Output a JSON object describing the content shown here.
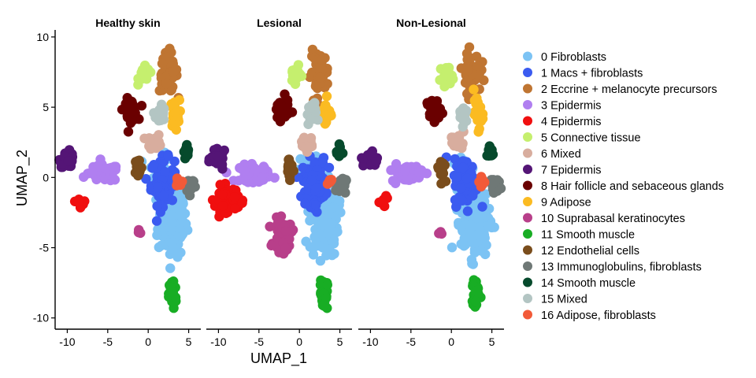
{
  "chart_data": {
    "type": "scatter",
    "xlabel": "UMAP_1",
    "ylabel": "UMAP_2",
    "xlim": [
      -11.5,
      6.5
    ],
    "ylim": [
      -10.8,
      10.5
    ],
    "x_ticks": [
      -10,
      -5,
      0,
      5
    ],
    "y_ticks": [
      10,
      5,
      0,
      -5,
      -10
    ],
    "x_tick_labels": [
      "-10",
      "-5",
      "0",
      "5"
    ],
    "y_tick_labels": [
      "10",
      "5",
      "0",
      "-5",
      "-10"
    ],
    "grid": false,
    "legend_position": "right",
    "panels": [
      {
        "title": "Healthy skin"
      },
      {
        "title": "Lesional"
      },
      {
        "title": "Non-Lesional"
      }
    ],
    "clusters": [
      {
        "id": 0,
        "label": "0 Fibroblasts",
        "color": "#7cc3f4"
      },
      {
        "id": 1,
        "label": "1 Macs + fibroblasts",
        "color": "#3b5bf0"
      },
      {
        "id": 2,
        "label": "2 Eccrine + melanocyte precursors",
        "color": "#bf7532"
      },
      {
        "id": 3,
        "label": "3 Epidermis",
        "color": "#b07ff0"
      },
      {
        "id": 4,
        "label": "4 Epidermis",
        "color": "#f00f0f"
      },
      {
        "id": 5,
        "label": "5 Connective tissue",
        "color": "#c5ef6e"
      },
      {
        "id": 6,
        "label": "6 Mixed",
        "color": "#d8ad9e"
      },
      {
        "id": 7,
        "label": "7 Epidermis",
        "color": "#541576"
      },
      {
        "id": 8,
        "label": "8 Hair follicle and sebaceous glands",
        "color": "#6a0000"
      },
      {
        "id": 9,
        "label": "9 Adipose",
        "color": "#fbbb22"
      },
      {
        "id": 10,
        "label": "10 Suprabasal keratinocytes",
        "color": "#b83f8a"
      },
      {
        "id": 11,
        "label": "11 Smooth muscle",
        "color": "#18ad24"
      },
      {
        "id": 12,
        "label": "12 Endothelial cells",
        "color": "#7a4d1c"
      },
      {
        "id": 13,
        "label": "13 Immunoglobulins, fibroblasts",
        "color": "#6f7876"
      },
      {
        "id": 14,
        "label": "14 Smooth muscle",
        "color": "#064a2c"
      },
      {
        "id": 15,
        "label": "15 Mixed",
        "color": "#b3c5c3"
      },
      {
        "id": 16,
        "label": "16 Adipose, fibroblasts",
        "color": "#f25a38"
      }
    ],
    "cluster_regions": [
      {
        "cluster": 0,
        "cx": 3,
        "cy": -3,
        "sx": 1.6,
        "sy": 2.4,
        "n": 160,
        "panels": [
          1,
          1,
          1
        ]
      },
      {
        "cluster": 0,
        "cx": 1.5,
        "cy": 0.5,
        "sx": 1.2,
        "sy": 1.0,
        "n": 40,
        "panels": [
          1,
          1,
          1
        ]
      },
      {
        "cluster": 1,
        "cx": 1.8,
        "cy": -0.3,
        "sx": 1.3,
        "sy": 1.5,
        "n": 90,
        "panels": [
          1,
          1,
          1
        ]
      },
      {
        "cluster": 2,
        "cx": 2.5,
        "cy": 7.5,
        "sx": 1.0,
        "sy": 1.3,
        "n": 60,
        "panels": [
          1,
          1,
          1
        ]
      },
      {
        "cluster": 3,
        "cx": -5.5,
        "cy": 0.3,
        "sx": 1.7,
        "sy": 0.55,
        "n": 70,
        "panels": [
          1,
          1,
          1
        ]
      },
      {
        "cluster": 4,
        "cx": -9,
        "cy": -1.5,
        "sx": 1.3,
        "sy": 0.8,
        "n": 80,
        "panels": [
          0,
          1,
          0
        ]
      },
      {
        "cluster": 4,
        "cx": -8.5,
        "cy": -1.6,
        "sx": 1.0,
        "sy": 0.6,
        "n": 7,
        "panels": [
          1,
          0,
          1
        ]
      },
      {
        "cluster": 5,
        "cx": -0.5,
        "cy": 7.3,
        "sx": 0.6,
        "sy": 0.5,
        "n": 25,
        "panels": [
          1,
          1,
          1
        ]
      },
      {
        "cluster": 6,
        "cx": 0.8,
        "cy": 2.5,
        "sx": 0.8,
        "sy": 0.5,
        "n": 25,
        "panels": [
          1,
          1,
          1
        ]
      },
      {
        "cluster": 7,
        "cx": -10,
        "cy": 1.3,
        "sx": 0.8,
        "sy": 0.5,
        "n": 35,
        "panels": [
          1,
          1,
          1
        ]
      },
      {
        "cluster": 8,
        "cx": -2.2,
        "cy": 4.8,
        "sx": 0.8,
        "sy": 0.7,
        "n": 40,
        "panels": [
          1,
          1,
          1
        ]
      },
      {
        "cluster": 9,
        "cx": 3.3,
        "cy": 4.5,
        "sx": 0.5,
        "sy": 0.9,
        "n": 30,
        "panels": [
          1,
          1,
          1
        ]
      },
      {
        "cluster": 10,
        "cx": -2,
        "cy": -4.2,
        "sx": 1.0,
        "sy": 1.0,
        "n": 60,
        "panels": [
          0,
          1,
          0
        ]
      },
      {
        "cluster": 10,
        "cx": -1.2,
        "cy": -4.0,
        "sx": 0.3,
        "sy": 0.3,
        "n": 3,
        "panels": [
          1,
          0,
          1
        ]
      },
      {
        "cluster": 11,
        "cx": 3.0,
        "cy": -8.3,
        "sx": 0.4,
        "sy": 1.0,
        "n": 35,
        "panels": [
          1,
          1,
          1
        ]
      },
      {
        "cluster": 12,
        "cx": -1.2,
        "cy": 0.7,
        "sx": 0.4,
        "sy": 0.7,
        "n": 20,
        "panels": [
          1,
          1,
          1
        ]
      },
      {
        "cluster": 13,
        "cx": 5.2,
        "cy": -0.5,
        "sx": 0.5,
        "sy": 0.5,
        "n": 25,
        "panels": [
          1,
          1,
          1
        ]
      },
      {
        "cluster": 14,
        "cx": 4.8,
        "cy": 1.8,
        "sx": 0.35,
        "sy": 0.5,
        "n": 15,
        "panels": [
          1,
          1,
          1
        ]
      },
      {
        "cluster": 15,
        "cx": 1.5,
        "cy": 4.5,
        "sx": 0.5,
        "sy": 0.7,
        "n": 20,
        "panels": [
          1,
          1,
          1
        ]
      },
      {
        "cluster": 16,
        "cx": 3.8,
        "cy": -0.3,
        "sx": 0.3,
        "sy": 0.3,
        "n": 8,
        "panels": [
          1,
          1,
          1
        ]
      }
    ]
  }
}
